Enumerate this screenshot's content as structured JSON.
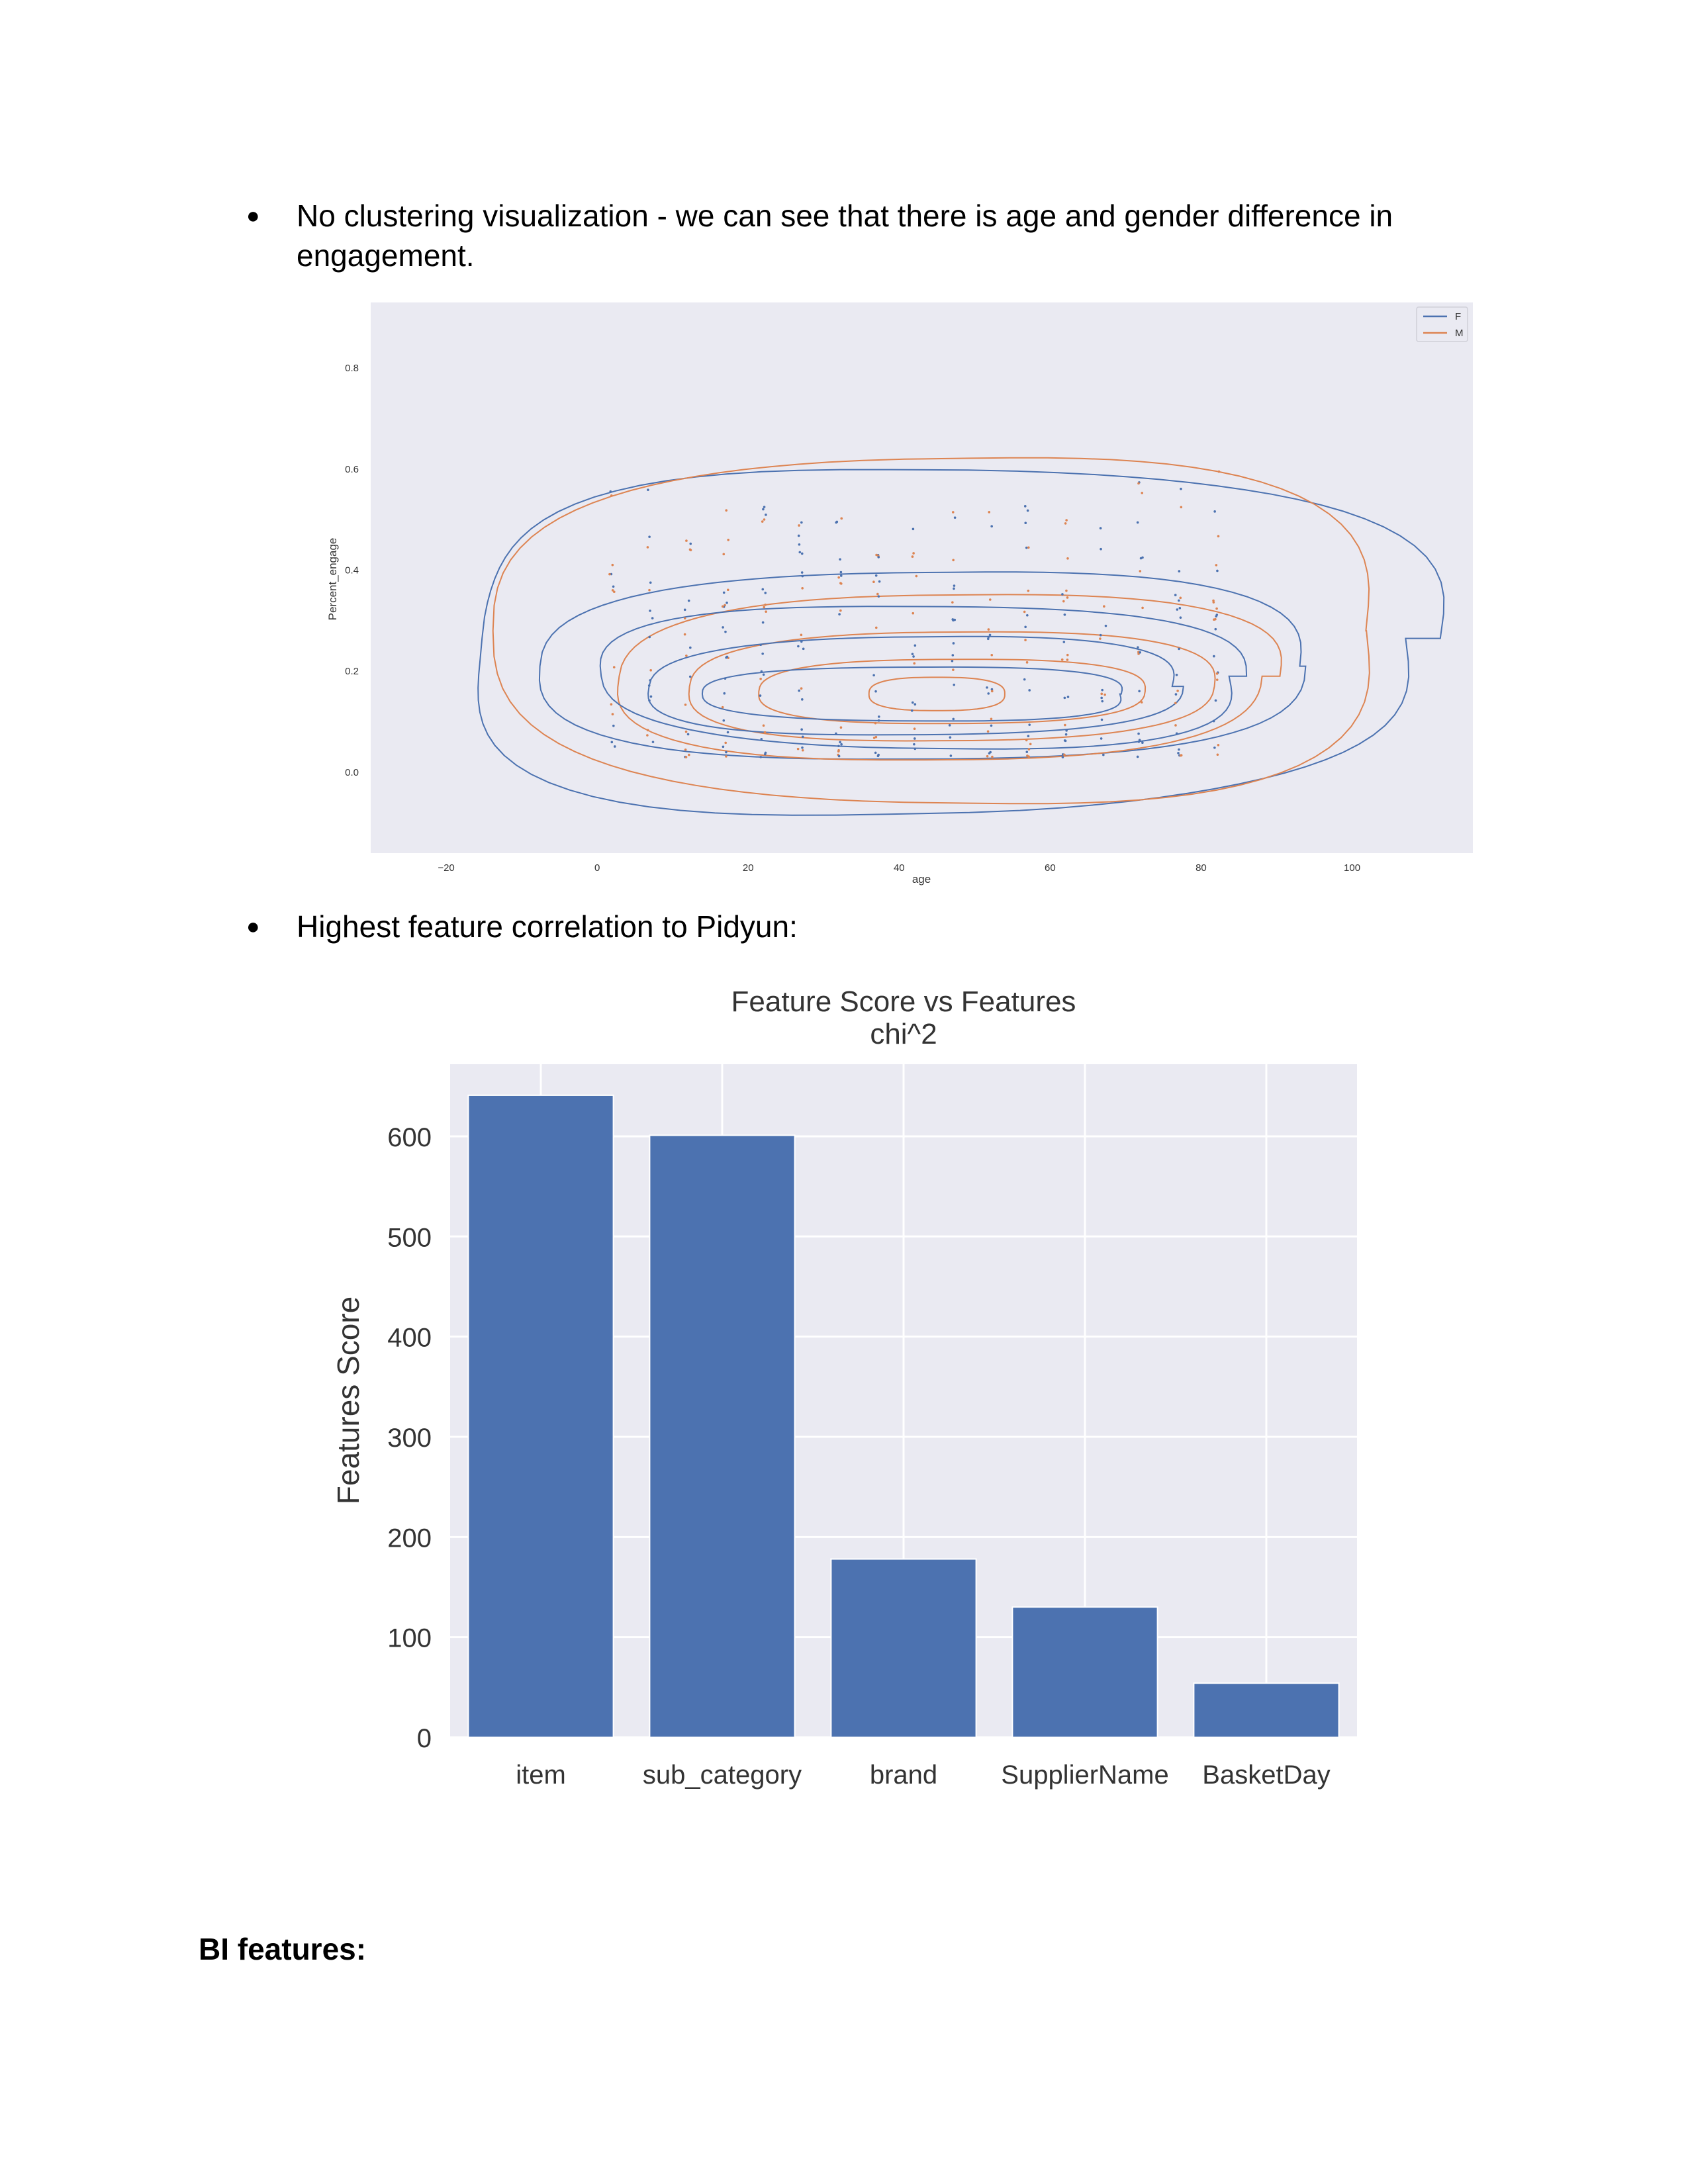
{
  "bullets": [
    {
      "marker": "●",
      "text": "No clustering visualization - we can see that there is age and gender difference in engagement."
    },
    {
      "marker": "●",
      "text": "Highest feature correlation to Pidyun:"
    }
  ],
  "heading": "BI features:",
  "kde_plot": {
    "type": "scatter",
    "xlabel": "age",
    "ylabel": "Percent_engage",
    "xticks": [
      "−20",
      "0",
      "20",
      "40",
      "60",
      "80",
      "100"
    ],
    "yticks": [
      "0.0",
      "0.2",
      "0.4",
      "0.6",
      "0.8"
    ],
    "xlim": [
      -30,
      116
    ],
    "ylim": [
      -0.16,
      0.93
    ],
    "legend": [
      {
        "name": "F",
        "color": "#4c72b0"
      },
      {
        "name": "M",
        "color": "#dd8452"
      }
    ],
    "colors": {
      "F": "#4c72b0",
      "M": "#dd8452",
      "background": "#eaeaf2"
    },
    "legend_position": "top-right"
  },
  "chart_data": {
    "type": "bar",
    "title": "Feature Score vs Features",
    "subtitle": "chi^2",
    "xlabel": "",
    "ylabel": "Features Score",
    "categories": [
      "item",
      "sub_category",
      "brand",
      "SupplierName",
      "BasketDay"
    ],
    "values": [
      641,
      601,
      178,
      130,
      54
    ],
    "ylim": [
      0,
      672
    ],
    "yticks": [
      "0",
      "100",
      "200",
      "300",
      "400",
      "500",
      "600"
    ],
    "grid": true,
    "bar_color": "#4c72b0",
    "background_color": "#eaeaf2"
  }
}
